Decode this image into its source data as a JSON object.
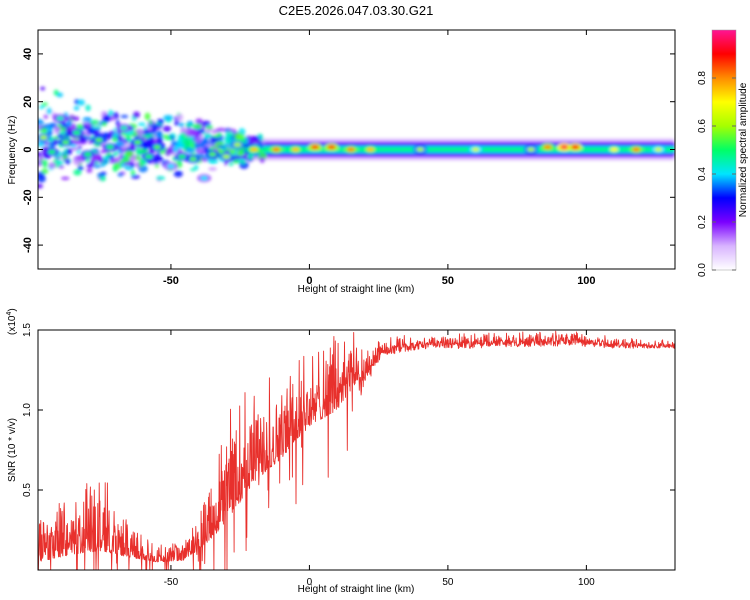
{
  "title": "C2E5.2026.047.03.30.G21",
  "chart_data": [
    {
      "type": "heatmap",
      "xlabel": "Height of straight line (km)",
      "ylabel": "Frequency (Hz)",
      "xlim": [
        -98,
        132
      ],
      "ylim": [
        -50,
        50
      ],
      "xticks": [
        -50,
        0,
        50,
        100
      ],
      "yticks": [
        -40,
        -20,
        0,
        20,
        40
      ],
      "xtick_labels": [
        "-50",
        "0",
        "50",
        "100"
      ],
      "ytick_labels": [
        "-40",
        "-20",
        "0",
        "20",
        "40"
      ],
      "colorbar": {
        "label": "Normalized spectral amplitude",
        "range": [
          0,
          1
        ],
        "ticks": [
          "0.0",
          "0.2",
          "0.4",
          "0.6",
          "0.8"
        ],
        "tick_values": [
          0.0,
          0.2,
          0.4,
          0.6,
          0.8
        ],
        "colors": [
          "#ffffff",
          "#d8b4ff",
          "#7a00ff",
          "#0000ff",
          "#00e5ff",
          "#00ff66",
          "#a6ff00",
          "#ffff00",
          "#ff8c00",
          "#ff0000",
          "#ff1493"
        ]
      },
      "band": {
        "center_hz": 0,
        "dispersed_region_km": [
          -98,
          -25
        ],
        "strong_points": [
          {
            "x": -96,
            "y": 5,
            "v": 0.6
          },
          {
            "x": -93,
            "y": -1,
            "v": 0.5
          },
          {
            "x": -90,
            "y": 13,
            "v": 0.45
          },
          {
            "x": -88,
            "y": 3,
            "v": 0.55
          },
          {
            "x": -84,
            "y": 7,
            "v": 0.5
          },
          {
            "x": -80,
            "y": -2,
            "v": 0.5
          },
          {
            "x": -76,
            "y": 4,
            "v": 0.55
          },
          {
            "x": -72,
            "y": 1,
            "v": 0.5
          },
          {
            "x": -67,
            "y": 9,
            "v": 0.45
          },
          {
            "x": -62,
            "y": 3,
            "v": 0.55
          },
          {
            "x": -58,
            "y": -3,
            "v": 0.5
          },
          {
            "x": -55,
            "y": 1,
            "v": 0.55
          },
          {
            "x": -50,
            "y": -7,
            "v": 0.4
          },
          {
            "x": -46,
            "y": -3,
            "v": 0.5
          },
          {
            "x": -42,
            "y": -4,
            "v": 0.55
          },
          {
            "x": -38,
            "y": -12,
            "v": 0.4
          },
          {
            "x": -35,
            "y": -2,
            "v": 0.55
          },
          {
            "x": -30,
            "y": -3,
            "v": 0.6
          },
          {
            "x": -26,
            "y": 2,
            "v": 0.6
          },
          {
            "x": -20,
            "y": 0,
            "v": 0.75
          },
          {
            "x": -12,
            "y": 0,
            "v": 0.8
          },
          {
            "x": -5,
            "y": 0,
            "v": 0.75
          },
          {
            "x": 2,
            "y": 1,
            "v": 0.85
          },
          {
            "x": 8,
            "y": 1,
            "v": 0.85
          },
          {
            "x": 15,
            "y": 0,
            "v": 0.8
          },
          {
            "x": 22,
            "y": 0,
            "v": 0.75
          },
          {
            "x": 40,
            "y": 0,
            "v": 0.6
          },
          {
            "x": 60,
            "y": 0,
            "v": 0.65
          },
          {
            "x": 80,
            "y": 0,
            "v": 0.6
          },
          {
            "x": 86,
            "y": 1,
            "v": 0.8
          },
          {
            "x": 92,
            "y": 1,
            "v": 0.95
          },
          {
            "x": 96,
            "y": 1,
            "v": 0.9
          },
          {
            "x": 110,
            "y": 0,
            "v": 0.7
          },
          {
            "x": 118,
            "y": 0,
            "v": 0.8
          },
          {
            "x": 126,
            "y": 0,
            "v": 0.65
          }
        ]
      }
    },
    {
      "type": "line",
      "xlabel": "Height of straight line (km)",
      "ylabel": "SNR (10 * v/v)",
      "yscale_label": "(x10",
      "yscale_exponent": "4",
      "xlim": [
        -98,
        132
      ],
      "ylim": [
        0,
        1.5
      ],
      "xticks": [
        -50,
        0,
        50,
        100
      ],
      "yticks": [
        0.5,
        1.0,
        1.5
      ],
      "xtick_labels": [
        "-50",
        "0",
        "50",
        "100"
      ],
      "ytick_labels": [
        "0.5",
        "1.0",
        "1.5"
      ],
      "color": "#e8302c",
      "envelope": [
        {
          "x": -98,
          "base": 0.05,
          "amp": 0.25
        },
        {
          "x": -85,
          "base": 0.1,
          "amp": 0.4
        },
        {
          "x": -75,
          "base": 0.12,
          "amp": 0.5
        },
        {
          "x": -65,
          "base": 0.08,
          "amp": 0.2
        },
        {
          "x": -55,
          "base": 0.05,
          "amp": 0.1
        },
        {
          "x": -45,
          "base": 0.06,
          "amp": 0.15
        },
        {
          "x": -35,
          "base": 0.2,
          "amp": 0.35
        },
        {
          "x": -28,
          "base": 0.35,
          "amp": 0.8
        },
        {
          "x": -20,
          "base": 0.55,
          "amp": 0.7
        },
        {
          "x": -10,
          "base": 0.7,
          "amp": 0.6
        },
        {
          "x": 0,
          "base": 0.9,
          "amp": 0.45
        },
        {
          "x": 10,
          "base": 1.0,
          "amp": 0.5
        },
        {
          "x": 18,
          "base": 1.2,
          "amp": 0.3
        },
        {
          "x": 26,
          "base": 1.38,
          "amp": 0.1
        },
        {
          "x": 40,
          "base": 1.41,
          "amp": 0.06
        },
        {
          "x": 60,
          "base": 1.42,
          "amp": 0.07
        },
        {
          "x": 80,
          "base": 1.43,
          "amp": 0.07
        },
        {
          "x": 95,
          "base": 1.44,
          "amp": 0.08
        },
        {
          "x": 110,
          "base": 1.41,
          "amp": 0.05
        },
        {
          "x": 132,
          "base": 1.4,
          "amp": 0.04
        }
      ]
    }
  ]
}
